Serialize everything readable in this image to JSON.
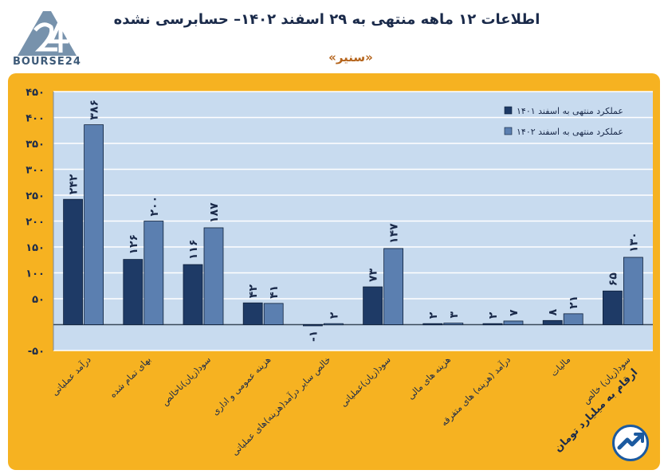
{
  "header": {
    "title": "اطلاعات ۱۲ ماهه منتهی به ۲۹ اسفند ۱۴۰۲– حسابرسی نشده",
    "subtitle": "«سنیر»",
    "logo_text": "BOURSE24"
  },
  "footer": {
    "units_note": "ارقام به میلیارد تومان"
  },
  "colors": {
    "frame": "#f6b221",
    "plot_bg": "#c8dbef",
    "series_1401": "#1e3a66",
    "series_1402": "#5b7fb0",
    "text": "#1a2a4a"
  },
  "chart_data": {
    "type": "bar",
    "categories": [
      "درآمد عملیاتی",
      "بهای تمام شده",
      "سود(زیان)ناخالص",
      "هزینه عمومی و اداری",
      "خالص سایر درآمد(هزینه)های عملیاتی",
      "سود(زیان)عملیاتی",
      "هزینه های مالی",
      "درآمد (هزینه) های متفرقه",
      "مالیات",
      "سود(زیان) خالص"
    ],
    "series": [
      {
        "name": "عملکرد منتهی به اسفند ۱۴۰۱",
        "values": [
          242,
          126,
          116,
          42,
          -1,
          73,
          2,
          2,
          8,
          65
        ],
        "labels": [
          "۲۴۲",
          "۱۲۶",
          "۱۱۶",
          "۴۲",
          "-۱",
          "۷۳",
          "۲",
          "۲",
          "۸",
          "۶۵"
        ]
      },
      {
        "name": "عملکرد منتهی به اسفند ۱۴۰۲",
        "values": [
          386,
          200,
          187,
          41,
          2,
          147,
          3,
          7,
          21,
          130
        ],
        "labels": [
          "۳۸۶",
          "۲۰۰",
          "۱۸۷",
          "۴۱",
          "۲",
          "۱۴۷",
          "۳",
          "۷",
          "۲۱",
          "۱۳۰"
        ]
      }
    ],
    "yticks": [
      -50,
      50,
      100,
      150,
      200,
      250,
      300,
      350,
      400,
      450
    ],
    "ytick_labels": [
      "-۵۰",
      "۵۰",
      "۱۰۰",
      "۱۵۰",
      "۲۰۰",
      "۲۵۰",
      "۳۰۰",
      "۳۵۰",
      "۴۰۰",
      "۴۵۰"
    ],
    "ylim": [
      -50,
      450
    ],
    "grid": true,
    "legend_position": "top-right"
  }
}
